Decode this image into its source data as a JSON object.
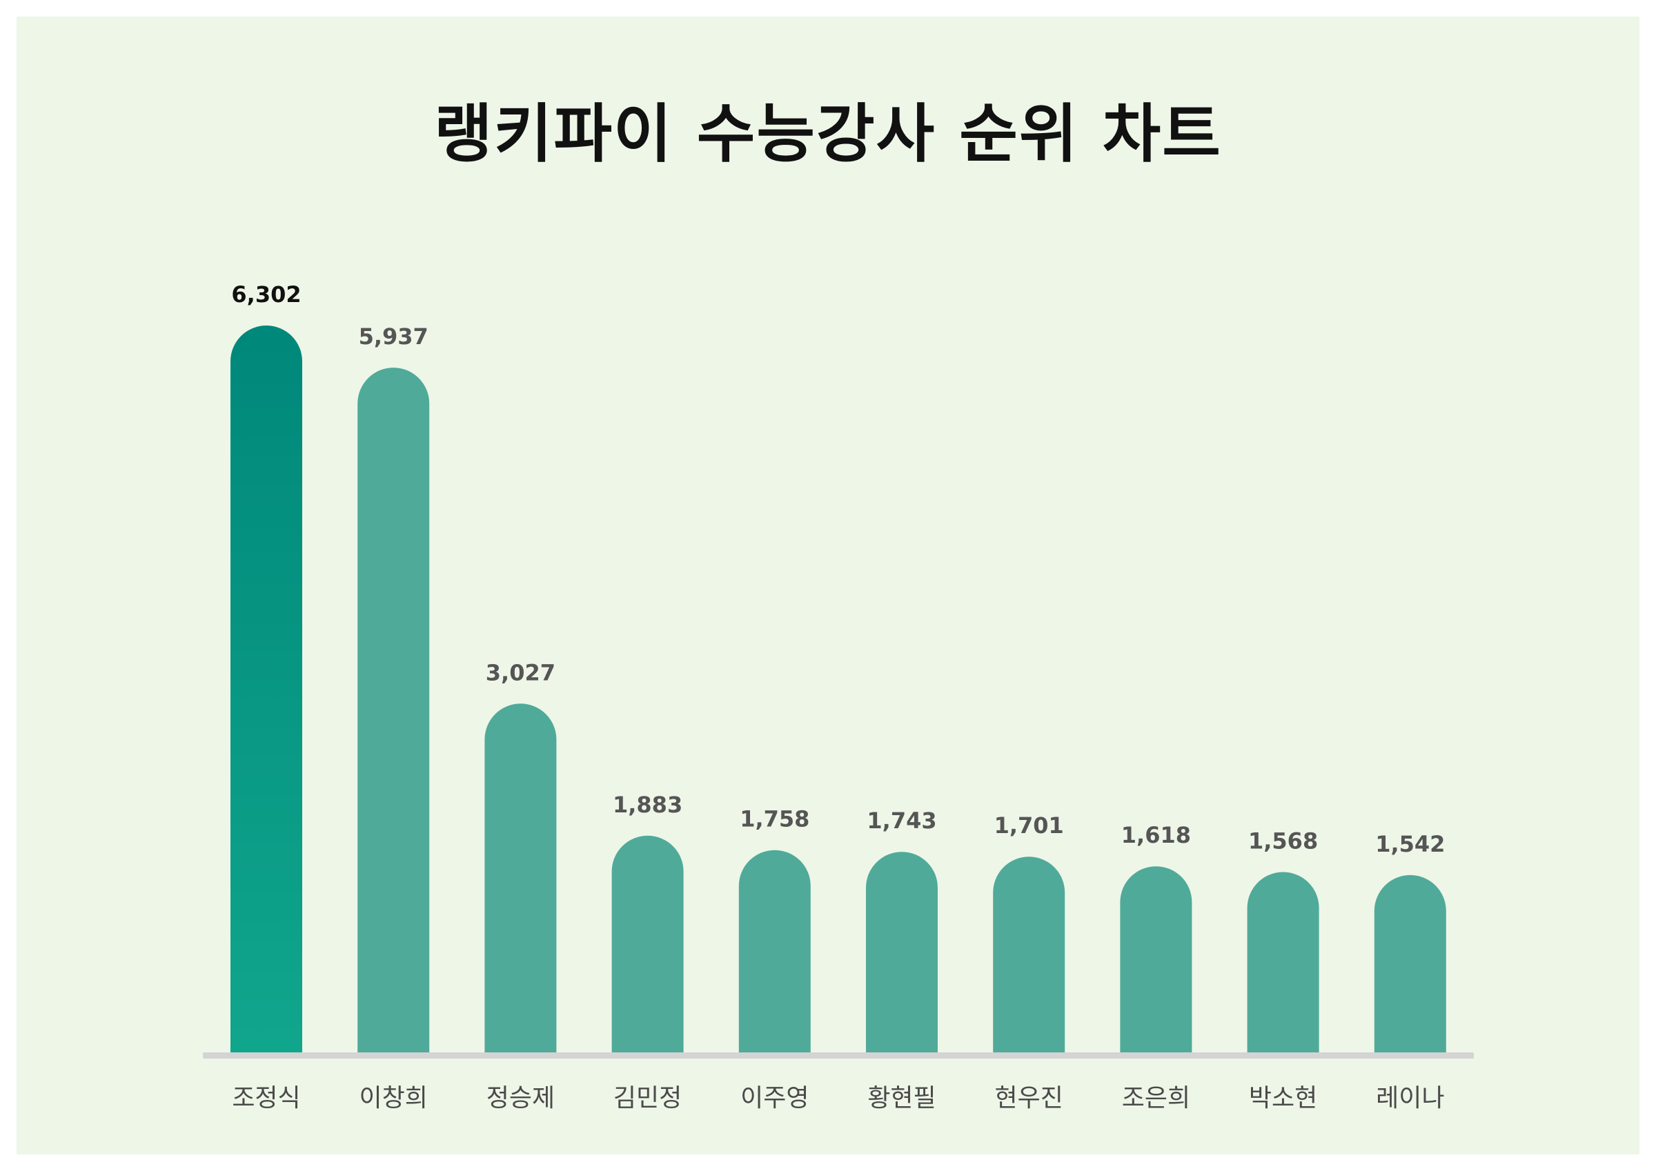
{
  "colors": {
    "background": "#eef6e8",
    "bar": "#50aa99",
    "top_bar_top": "#00887a",
    "top_bar_bottom": "#10a68c",
    "baseline": "#d4d4d4",
    "value_label": "#555555",
    "top_value_label": "#111111",
    "category_label": "#4a4a4a"
  },
  "chart_data": {
    "type": "bar",
    "title": "랭키파이 수능강사 순위 차트",
    "xlabel": "",
    "ylabel": "",
    "categories": [
      "조정식",
      "이창희",
      "정승제",
      "김민정",
      "이주영",
      "황현필",
      "현우진",
      "조은희",
      "박소현",
      "레이나"
    ],
    "values": [
      6302,
      5937,
      3027,
      1883,
      1758,
      1743,
      1701,
      1618,
      1568,
      1542
    ],
    "value_labels": [
      "6,302",
      "5,937",
      "3,027",
      "1,883",
      "1,758",
      "1,743",
      "1,701",
      "1,618",
      "1,568",
      "1,542"
    ],
    "ylim": [
      0,
      6302
    ],
    "grid": false,
    "legend": "none",
    "highlight_index": 0
  }
}
